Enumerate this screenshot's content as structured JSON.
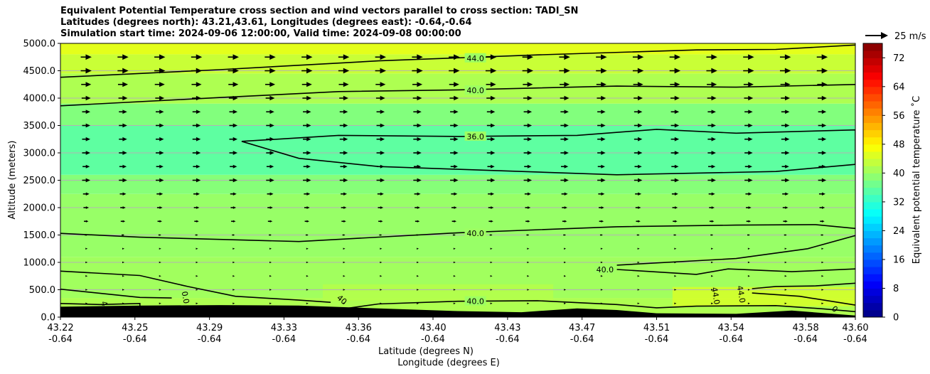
{
  "colors": {
    "ground": "#000000",
    "contour": "#000000",
    "gridline": "#b3b3b3",
    "arrow": "#000000"
  },
  "chart_data": {
    "type": "heatmap",
    "title_lines": [
      "Equivalent Potential Temperature cross section and wind vectors parallel to cross section: TADI_SN",
      "Latitudes (degrees north): 43.21,43.61, Longitudes (degrees east): -0.64,-0.64",
      "Simulation start time: 2024-09-06 12:00:00, Valid time: 2024-09-08 00:00:00"
    ],
    "ylabel": "Altitude (meters)",
    "xlabel_line1": "Latitude (degrees N)",
    "xlabel_line2": "Longitude (degrees E)",
    "ylim": [
      0,
      5000
    ],
    "yticks": [
      "0.0",
      "500.0",
      "1000.0",
      "1500.0",
      "2000.0",
      "2500.0",
      "3000.0",
      "3500.0",
      "4000.0",
      "4500.0",
      "5000.0"
    ],
    "xlim": [
      0,
      1
    ],
    "xticks": [
      {
        "pos": 0.0,
        "lat": "43.22",
        "lon": "-0.64"
      },
      {
        "pos": 0.0937,
        "lat": "43.25",
        "lon": "-0.64"
      },
      {
        "pos": 0.1875,
        "lat": "43.29",
        "lon": "-0.64"
      },
      {
        "pos": 0.2812,
        "lat": "43.33",
        "lon": "-0.64"
      },
      {
        "pos": 0.375,
        "lat": "43.36",
        "lon": "-0.64"
      },
      {
        "pos": 0.4687,
        "lat": "43.40",
        "lon": "-0.64"
      },
      {
        "pos": 0.5625,
        "lat": "43.43",
        "lon": "-0.64"
      },
      {
        "pos": 0.6562,
        "lat": "43.47",
        "lon": "-0.64"
      },
      {
        "pos": 0.75,
        "lat": "43.51",
        "lon": "-0.64"
      },
      {
        "pos": 0.8437,
        "lat": "43.54",
        "lon": "-0.64"
      },
      {
        "pos": 0.9375,
        "lat": "43.58",
        "lon": "-0.64"
      },
      {
        "pos": 1.0,
        "lat": "43.60",
        "lon": "-0.64"
      }
    ],
    "colorbar": {
      "label": "Equivalent potential temperature $^\\circ$C",
      "label_display": "Equivalent potential temperature ˚C",
      "range": [
        0,
        76
      ],
      "ticks": [
        "0",
        "8",
        "16",
        "24",
        "32",
        "40",
        "48",
        "56",
        "64",
        "72"
      ],
      "colormap": "jet"
    },
    "quiver_key": "25 m/s",
    "field_bands": [
      {
        "alt_from": 0,
        "alt_to": 350,
        "theta": 41.5
      },
      {
        "alt_from": 350,
        "alt_to": 1100,
        "theta": 40.5
      },
      {
        "alt_from": 1100,
        "alt_to": 2250,
        "theta": 39.8
      },
      {
        "alt_from": 2250,
        "alt_to": 2600,
        "theta": 38.5
      },
      {
        "alt_from": 2600,
        "alt_to": 3500,
        "theta": 35.5
      },
      {
        "alt_from": 3500,
        "alt_to": 3900,
        "theta": 38.2
      },
      {
        "alt_from": 3900,
        "alt_to": 4450,
        "theta": 41.5
      },
      {
        "alt_from": 4450,
        "alt_to": 4800,
        "theta": 43.5
      },
      {
        "alt_from": 4800,
        "alt_to": 5000,
        "theta": 45.5
      }
    ],
    "field_patches": [
      {
        "x_from": 0.77,
        "x_to": 1.0,
        "alt_from": 200,
        "alt_to": 550,
        "theta": 44.5
      },
      {
        "x_from": 0.33,
        "x_to": 0.62,
        "alt_from": 300,
        "alt_to": 600,
        "theta": 42.0
      }
    ],
    "ground_profile": [
      [
        0,
        190
      ],
      [
        0.1,
        210
      ],
      [
        0.2,
        220
      ],
      [
        0.3,
        210
      ],
      [
        0.4,
        160
      ],
      [
        0.5,
        110
      ],
      [
        0.58,
        90
      ],
      [
        0.65,
        160
      ],
      [
        0.7,
        130
      ],
      [
        0.75,
        70
      ],
      [
        0.85,
        60
      ],
      [
        0.92,
        120
      ],
      [
        1.0,
        30
      ]
    ],
    "contours": [
      {
        "level": "44.0",
        "points": [
          [
            0,
            4380
          ],
          [
            0.2,
            4520
          ],
          [
            0.4,
            4680
          ],
          [
            0.6,
            4790
          ],
          [
            0.8,
            4880
          ],
          [
            0.9,
            4890
          ],
          [
            1.0,
            4970
          ]
        ],
        "label_at": [
          0.522,
          4730
        ]
      },
      {
        "level": "40.0",
        "points": [
          [
            0,
            3860
          ],
          [
            0.2,
            4010
          ],
          [
            0.35,
            4120
          ],
          [
            0.5,
            4150
          ],
          [
            0.7,
            4220
          ],
          [
            0.85,
            4200
          ],
          [
            1.0,
            4250
          ]
        ],
        "label_at": [
          0.522,
          4140
        ]
      },
      {
        "level": "36.0",
        "points": [
          [
            0.228,
            3210
          ],
          [
            0.35,
            3320
          ],
          [
            0.5,
            3300
          ],
          [
            0.65,
            3320
          ],
          [
            0.75,
            3430
          ],
          [
            0.85,
            3360
          ],
          [
            1.0,
            3420
          ],
          [
            1.0,
            2790
          ],
          [
            0.9,
            2660
          ],
          [
            0.7,
            2600
          ],
          [
            0.5,
            2700
          ],
          [
            0.4,
            2750
          ],
          [
            0.3,
            2900
          ],
          [
            0.228,
            3210
          ]
        ],
        "label_at": [
          0.522,
          3300
        ]
      },
      {
        "level": "40.0",
        "points": [
          [
            0,
            1530
          ],
          [
            0.1,
            1460
          ],
          [
            0.3,
            1380
          ],
          [
            0.5,
            1540
          ],
          [
            0.7,
            1650
          ],
          [
            0.85,
            1680
          ],
          [
            0.95,
            1690
          ],
          [
            1.0,
            1620
          ]
        ],
        "label_at": [
          0.522,
          1530
        ]
      },
      {
        "level": "40.0",
        "points": [
          [
            0.7,
            950
          ],
          [
            0.85,
            1070
          ],
          [
            0.94,
            1250
          ],
          [
            1.0,
            1490
          ]
        ],
        "label_at": [
          0.685,
          870
        ]
      },
      {
        "level": "",
        "points": [
          [
            0.7,
            870
          ],
          [
            0.8,
            780
          ],
          [
            0.84,
            880
          ],
          [
            0.92,
            830
          ],
          [
            1.0,
            880
          ]
        ],
        "label_at": null
      },
      {
        "level": "",
        "points": [
          [
            0,
            840
          ],
          [
            0.1,
            760
          ],
          [
            0.16,
            560
          ],
          [
            0.22,
            380
          ],
          [
            0.3,
            310
          ],
          [
            0.34,
            270
          ]
        ],
        "label_at": null
      },
      {
        "level": "",
        "points": [
          [
            0,
            510
          ],
          [
            0.1,
            360
          ],
          [
            0.14,
            350
          ]
        ],
        "label_at": null
      },
      {
        "level": "40.0",
        "points": [
          [
            0,
            250
          ],
          [
            0.05,
            230
          ],
          [
            0.1,
            250
          ],
          [
            0.1,
            150
          ],
          [
            0.14,
            200
          ]
        ],
        "label_at": null
      },
      {
        "level": "40.0",
        "points": [
          [
            0.36,
            160
          ],
          [
            0.4,
            240
          ],
          [
            0.5,
            290
          ],
          [
            0.6,
            300
          ],
          [
            0.7,
            230
          ],
          [
            0.75,
            170
          ],
          [
            0.8,
            200
          ],
          [
            0.9,
            210
          ],
          [
            0.96,
            150
          ],
          [
            1.0,
            100
          ]
        ],
        "label_at": [
          0.522,
          290
        ]
      },
      {
        "level": "",
        "points": [
          [
            0.87,
            520
          ],
          [
            0.9,
            560
          ],
          [
            0.95,
            570
          ],
          [
            1.0,
            620
          ]
        ],
        "label_at": null
      },
      {
        "level": "",
        "points": [
          [
            0.87,
            440
          ],
          [
            0.93,
            380
          ],
          [
            1.0,
            220
          ]
        ],
        "label_at": null
      }
    ],
    "rotated_contour_labels": [
      {
        "text": "0.0",
        "x": 0.154,
        "alt": 350,
        "angle": 80
      },
      {
        "text": "40",
        "x": 0.352,
        "alt": 280,
        "angle": 40
      },
      {
        "text": "4",
        "x": 0.052,
        "alt": 230,
        "angle": 70
      },
      {
        "text": "44.0",
        "x": 0.821,
        "alt": 380,
        "angle": 80
      },
      {
        "text": "44.0",
        "x": 0.853,
        "alt": 410,
        "angle": 80
      },
      {
        "text": "0",
        "x": 0.972,
        "alt": 110,
        "angle": 40
      }
    ],
    "wind_rows": [
      {
        "alt": 4750,
        "speed": 12
      },
      {
        "alt": 4500,
        "speed": 12
      },
      {
        "alt": 4250,
        "speed": 11
      },
      {
        "alt": 4000,
        "speed": 10
      },
      {
        "alt": 3750,
        "speed": 9
      },
      {
        "alt": 3500,
        "speed": 9
      },
      {
        "alt": 3250,
        "speed": 9
      },
      {
        "alt": 3000,
        "speed": 9
      },
      {
        "alt": 2750,
        "speed": 8
      },
      {
        "alt": 2500,
        "speed": 9
      },
      {
        "alt": 2250,
        "speed": 7
      },
      {
        "alt": 2000,
        "speed": 6
      },
      {
        "alt": 1750,
        "speed": 5
      },
      {
        "alt": 1500,
        "speed": 3
      },
      {
        "alt": 1250,
        "speed": 1
      },
      {
        "alt": 1000,
        "speed": 1
      },
      {
        "alt": 750,
        "speed": 1
      },
      {
        "alt": 500,
        "speed": 1
      },
      {
        "alt": 250,
        "speed": 1
      }
    ],
    "wind_columns": 21
  }
}
